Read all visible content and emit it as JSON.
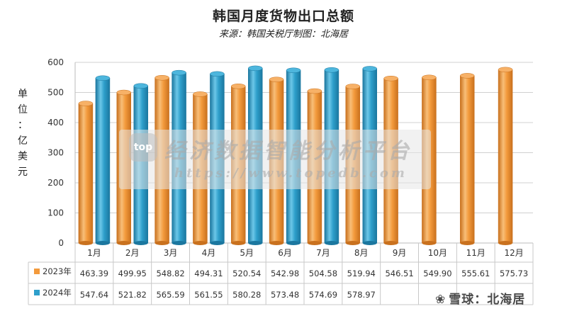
{
  "title": "韩国月度货物出口总额",
  "subtitle": "来源：韩国关税厅制图：北海居",
  "ylabel": [
    "单",
    "位",
    "：",
    "亿",
    "美",
    "元"
  ],
  "watermark": {
    "logo": "top",
    "text": "经济数据智能分析平台",
    "url": "https://www.topedb.com"
  },
  "brand": {
    "icon": "❀",
    "text": "雪球：北海居"
  },
  "colors": {
    "series_2023": "#F39A3C",
    "series_2024": "#2E9FCB",
    "grid": "#D0D0D0"
  },
  "chart_data": {
    "type": "bar",
    "title": "韩国月度货物出口总额",
    "subtitle": "来源：韩国关税厅制图：北海居",
    "ylabel": "单位：亿美元",
    "ylim": [
      0,
      600
    ],
    "yticks": [
      0,
      100,
      200,
      300,
      400,
      500,
      600
    ],
    "categories": [
      "1月",
      "2月",
      "3月",
      "4月",
      "5月",
      "6月",
      "7月",
      "8月",
      "9月",
      "10月",
      "11月",
      "12月"
    ],
    "grid": true,
    "legend": "table-below",
    "series": [
      {
        "name": "2023年",
        "values": [
          463.39,
          499.95,
          548.82,
          494.31,
          520.54,
          542.98,
          504.58,
          519.94,
          546.51,
          549.9,
          555.61,
          575.73
        ],
        "labels": [
          "463.39",
          "499.95",
          "548.82",
          "494.31",
          "520.54",
          "542.98",
          "504.58",
          "519.94",
          "546.51",
          "549.90",
          "555.61",
          "575.73"
        ]
      },
      {
        "name": "2024年",
        "values": [
          547.64,
          521.82,
          565.59,
          561.55,
          580.28,
          573.48,
          574.69,
          578.97,
          null,
          null,
          null,
          null
        ],
        "labels": [
          "547.64",
          "521.82",
          "565.59",
          "561.55",
          "580.28",
          "573.48",
          "574.69",
          "578.97",
          "",
          "",
          "",
          ""
        ]
      }
    ]
  }
}
